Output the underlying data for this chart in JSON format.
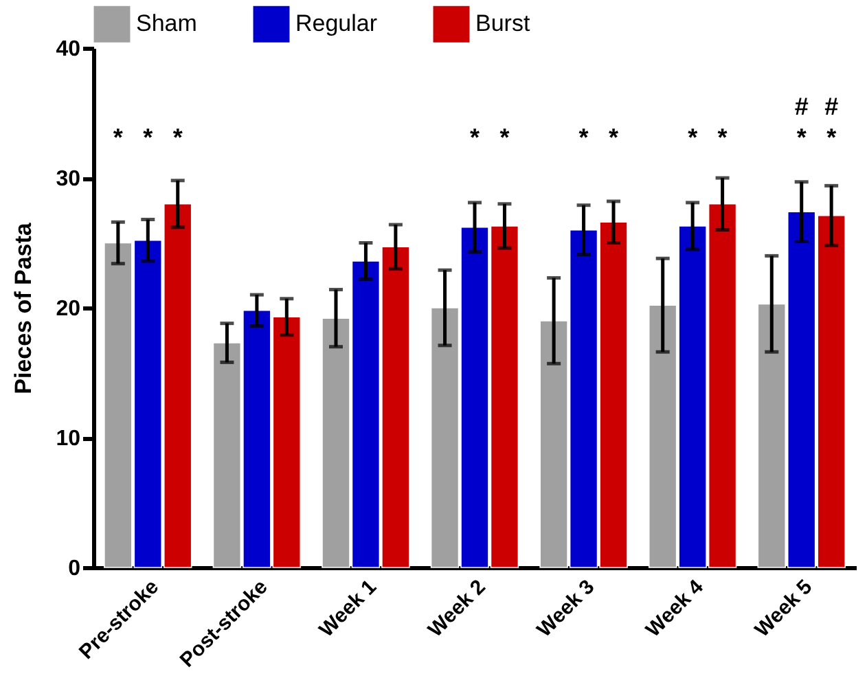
{
  "chart_data": {
    "type": "bar",
    "ylabel": "Pieces of Pasta",
    "categories": [
      "Pre-stroke",
      "Post-stroke",
      "Week 1",
      "Week 2",
      "Week 3",
      "Week 4",
      "Week 5"
    ],
    "series": [
      {
        "name": "Sham",
        "color": "#a0a0a0",
        "values": [
          25.0,
          17.3,
          19.2,
          20.0,
          19.0,
          20.2,
          20.3
        ],
        "errors": [
          1.6,
          1.5,
          2.2,
          2.9,
          3.3,
          3.6,
          3.7
        ]
      },
      {
        "name": "Regular",
        "color": "#0000cc",
        "values": [
          25.2,
          19.8,
          23.6,
          26.2,
          26.0,
          26.3,
          27.4
        ],
        "errors": [
          1.6,
          1.2,
          1.4,
          1.9,
          1.9,
          1.8,
          2.3
        ]
      },
      {
        "name": "Burst",
        "color": "#cc0000",
        "values": [
          28.0,
          19.3,
          24.7,
          26.3,
          26.6,
          28.0,
          27.1
        ],
        "errors": [
          1.8,
          1.4,
          1.7,
          1.7,
          1.6,
          2.0,
          2.3
        ]
      }
    ],
    "ylim": [
      0,
      40
    ],
    "yticks": [
      0,
      10,
      20,
      30,
      40
    ],
    "grid": false,
    "legend": "top",
    "annotations": [
      "*",
      "*",
      "*",
      "*",
      "*",
      "*",
      "*",
      "*",
      "*",
      "*",
      "*",
      "#",
      "#"
    ]
  }
}
